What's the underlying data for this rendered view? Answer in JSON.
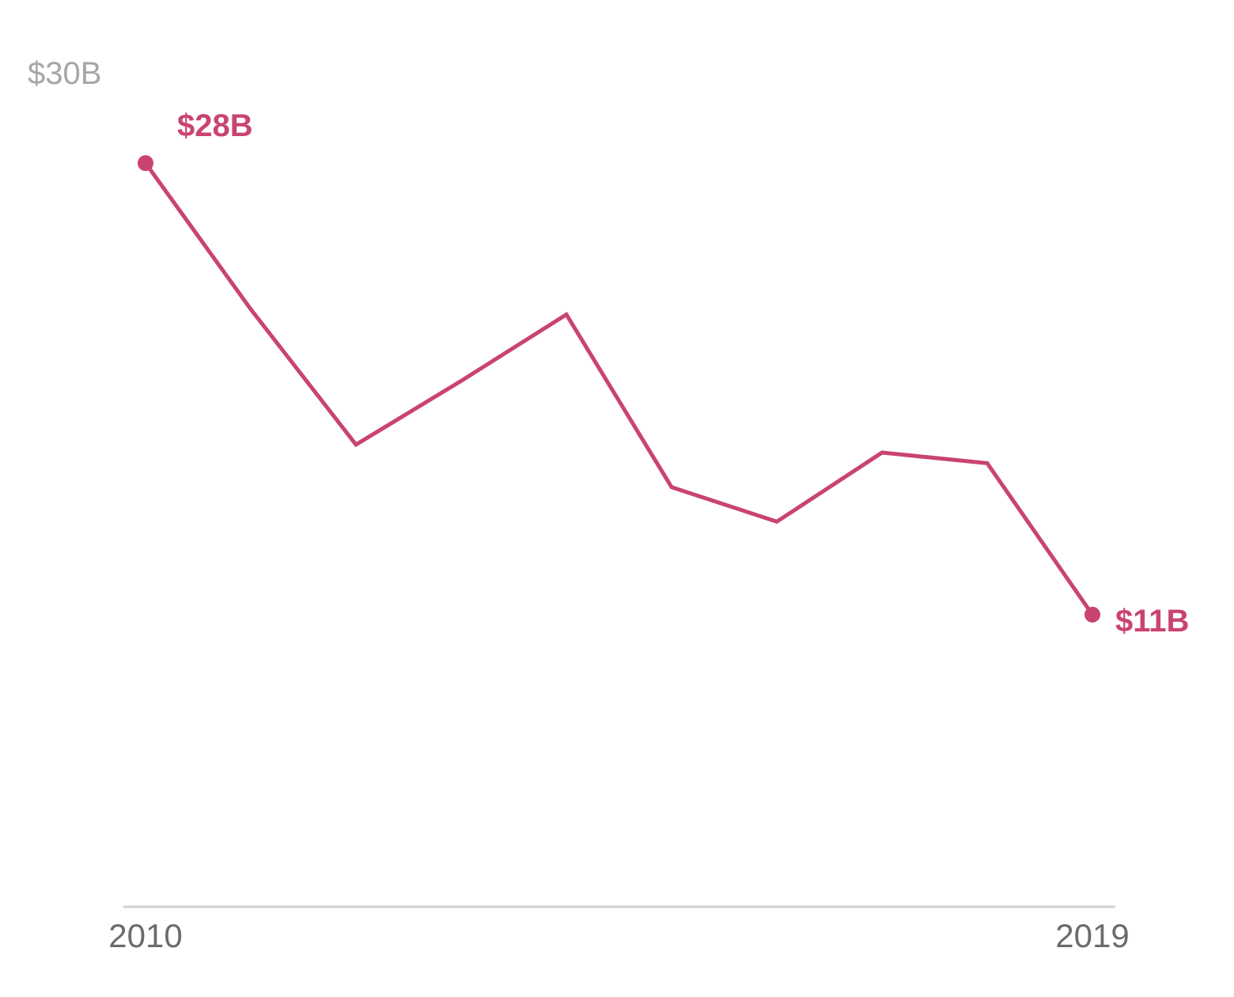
{
  "chart_data": {
    "type": "line",
    "title": "",
    "xlabel": "",
    "ylabel": "",
    "x": [
      2010,
      2011,
      2012,
      2013,
      2014,
      2015,
      2016,
      2017,
      2018,
      2019
    ],
    "series": [
      {
        "values": [
          28,
          22.5,
          17.4,
          19.8,
          22.3,
          15.8,
          14.5,
          17.1,
          16.7,
          11
        ]
      }
    ],
    "xlim": [
      2010,
      2019
    ],
    "ylim": [
      0,
      30
    ],
    "x_tick_labels": [
      "2010",
      "2019"
    ],
    "y_max_label": "$30B",
    "point_labels": {
      "first": "$28B",
      "last": "$11B"
    },
    "colors": {
      "line": "#c9446f",
      "axis": "#d0d0d0"
    },
    "grid": false,
    "legend": "none"
  }
}
